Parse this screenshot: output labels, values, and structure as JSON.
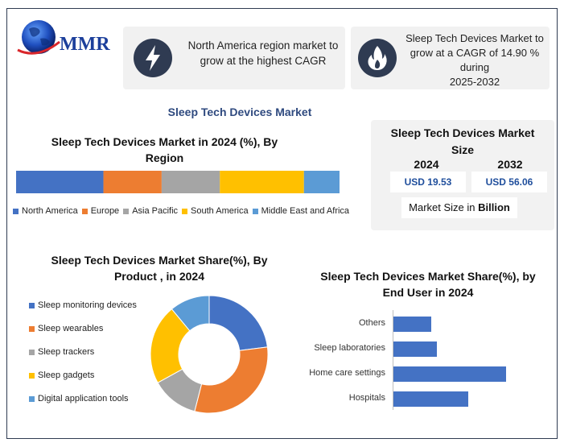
{
  "colors": {
    "blue": "#4472c4",
    "orange": "#ed7d31",
    "gray": "#a5a5a5",
    "yellow": "#ffc000",
    "lightblue": "#5b9bd5",
    "title": "#2f4a7f"
  },
  "logo": {
    "text": "MMR",
    "icon": "globe-icon"
  },
  "highlights": [
    {
      "icon": "lightning-icon",
      "text": "North America region market to grow at the highest CAGR"
    },
    {
      "icon": "flame-icon",
      "line1": "Sleep Tech Devices Market to grow at a CAGR of 14.90 % during",
      "line2": "2025-2032"
    }
  ],
  "main_title": "Sleep Tech Devices Market",
  "market_size": {
    "title": "Sleep Tech Devices Market Size",
    "years": [
      {
        "year": "2024",
        "value": "USD 19.53"
      },
      {
        "year": "2032",
        "value": "USD 56.06"
      }
    ],
    "note_prefix": "Market Size in ",
    "note_unit": "Billion"
  },
  "chart_data": [
    {
      "type": "bar",
      "stacked": true,
      "orientation": "horizontal",
      "title": "Sleep Tech Devices Market in 2024 (%), By Region",
      "series": [
        {
          "name": "North America",
          "value": 27
        },
        {
          "name": "Europe",
          "value": 18
        },
        {
          "name": "Asia Pacific",
          "value": 18
        },
        {
          "name": "South America",
          "value": 26
        },
        {
          "name": "Middle East and Africa",
          "value": 11
        }
      ],
      "legend_position": "bottom"
    },
    {
      "type": "pie",
      "donut": true,
      "title": "Sleep Tech Devices Market Share(%), By Product , in 2024",
      "slices": [
        {
          "name": "Sleep monitoring devices",
          "value": 23
        },
        {
          "name": "Sleep wearables",
          "value": 31
        },
        {
          "name": "Sleep trackers",
          "value": 13
        },
        {
          "name": "Sleep gadgets",
          "value": 22
        },
        {
          "name": "Digital application tools",
          "value": 11
        }
      ],
      "legend_position": "left"
    },
    {
      "type": "bar",
      "orientation": "horizontal",
      "title": "Sleep Tech Devices Market Share(%), by End User  in 2024",
      "categories": [
        "Others",
        "Sleep laboratories",
        "Home care settings",
        "Hospitals"
      ],
      "values": [
        12,
        14,
        36,
        24
      ],
      "xlim": [
        0,
        40
      ]
    }
  ]
}
